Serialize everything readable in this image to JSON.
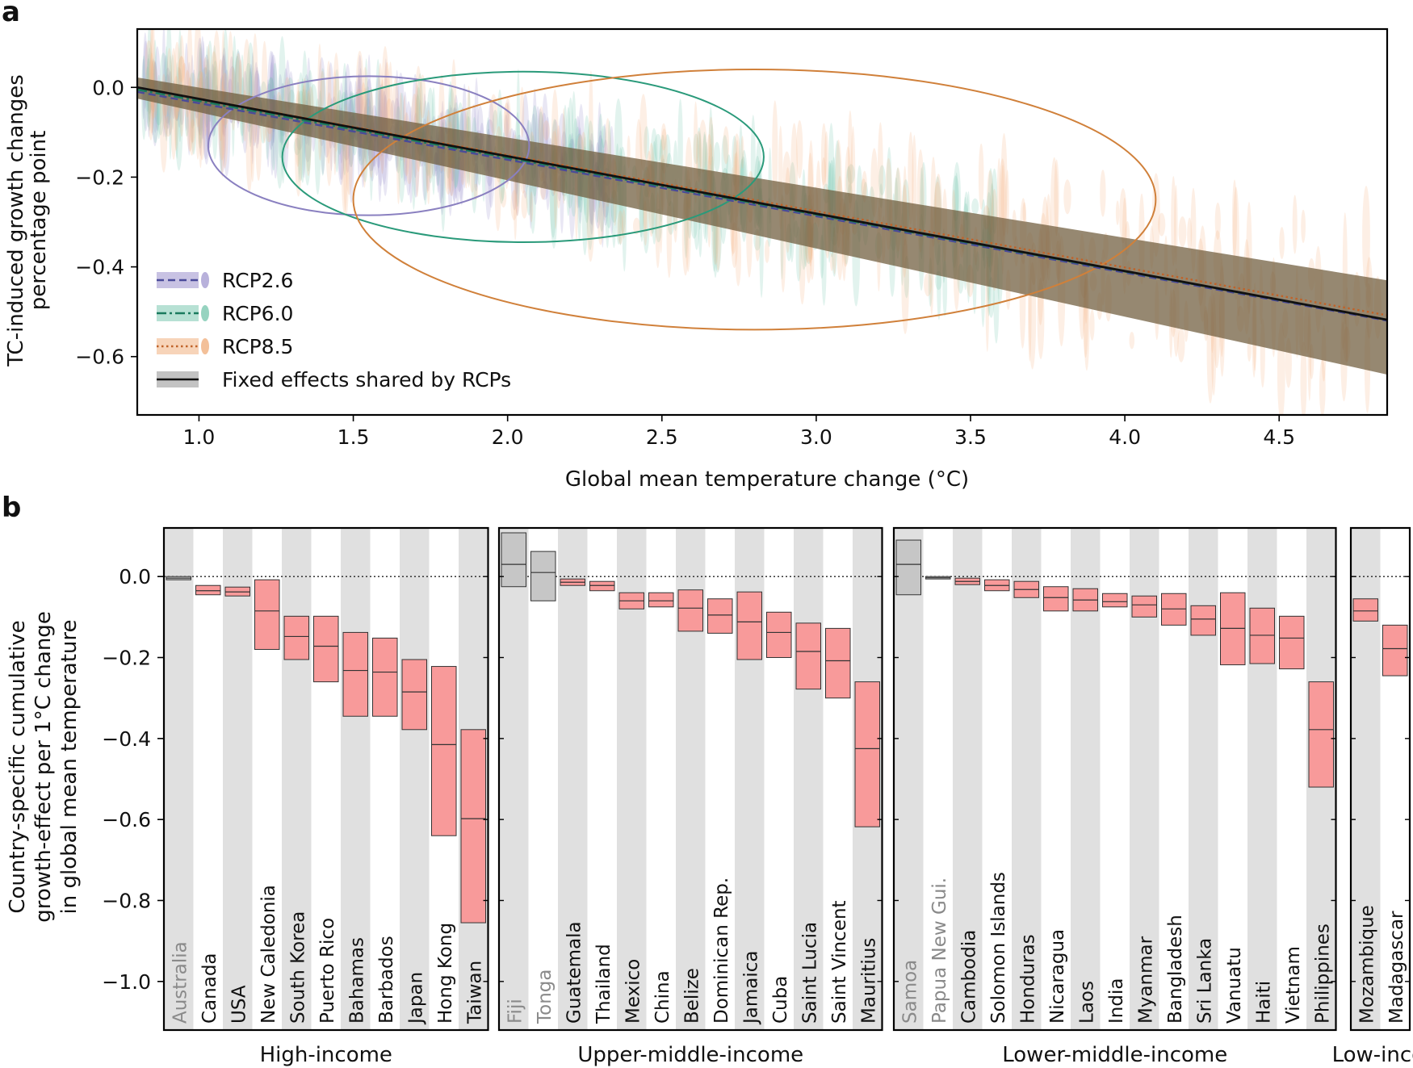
{
  "panel_a_label": "a",
  "panel_b_label": "b",
  "chart_data": [
    {
      "panel": "a",
      "type": "line",
      "xlabel": "Global mean temperature change (°C)",
      "ylabel_lines": [
        "TC-induced growth changes",
        "percentage point"
      ],
      "xlim": [
        0.8,
        4.85
      ],
      "ylim": [
        -0.73,
        0.13
      ],
      "xticks": [
        1.0,
        1.5,
        2.0,
        2.5,
        3.0,
        3.5,
        4.0,
        4.5
      ],
      "xtick_labels": [
        "1.0",
        "1.5",
        "2.0",
        "2.5",
        "3.0",
        "3.5",
        "4.0",
        "4.5"
      ],
      "yticks": [
        0.0,
        -0.2,
        -0.4,
        -0.6
      ],
      "ytick_labels": [
        "0.0",
        "−0.2",
        "−0.4",
        "−0.6"
      ],
      "legend": [
        "RCP2.6",
        "RCP6.0",
        "RCP8.5",
        "Fixed effects shared by RCPs"
      ],
      "series": [
        {
          "name": "RCP2.6",
          "color": "#4a4a9a",
          "style": "dashed",
          "x": [
            0.8,
            4.85
          ],
          "y": [
            -0.01,
            -0.52
          ]
        },
        {
          "name": "RCP6.0",
          "color": "#1a7a5e",
          "style": "dashdot",
          "x": [
            0.8,
            4.85
          ],
          "y": [
            -0.005,
            -0.518
          ]
        },
        {
          "name": "RCP8.5",
          "color": "#c0632a",
          "style": "dotted",
          "x": [
            0.8,
            4.85
          ],
          "y": [
            0.0,
            -0.508
          ]
        },
        {
          "name": "Fixed effects shared by RCPs",
          "color": "#111111",
          "style": "solid",
          "x": [
            0.8,
            4.85
          ],
          "y": [
            0.0,
            -0.518
          ]
        }
      ],
      "ellipses": [
        {
          "name": "RCP2.6",
          "color": "#8a80c0",
          "cx": 1.55,
          "cy": -0.13,
          "rx": 0.52,
          "ry": 0.155
        },
        {
          "name": "RCP6.0",
          "color": "#2a9a7a",
          "cx": 2.05,
          "cy": -0.155,
          "rx": 0.78,
          "ry": 0.19
        },
        {
          "name": "RCP8.5",
          "color": "#d0803a",
          "cx": 2.8,
          "cy": -0.25,
          "rx": 1.3,
          "ry": 0.29
        }
      ]
    },
    {
      "panel": "b",
      "type": "box",
      "ylabel_lines": [
        "Country-specific cumulative",
        "growth-effect per 1°C change",
        "in global mean temperature"
      ],
      "ylim": [
        -1.12,
        0.12
      ],
      "yticks": [
        0.0,
        -0.2,
        -0.4,
        -0.6,
        -0.8,
        -1.0
      ],
      "ytick_labels": [
        "0.0",
        "−0.2",
        "−0.4",
        "−0.6",
        "−0.8",
        "−1.0"
      ],
      "groups": [
        {
          "name": "High-income",
          "countries": [
            {
              "name": "Australia",
              "significant": false,
              "low": -0.008,
              "median": -0.004,
              "high": 0.0
            },
            {
              "name": "Canada",
              "significant": true,
              "low": -0.045,
              "median": -0.035,
              "high": -0.022
            },
            {
              "name": "USA",
              "significant": true,
              "low": -0.048,
              "median": -0.038,
              "high": -0.026
            },
            {
              "name": "New Caledonia",
              "significant": true,
              "low": -0.18,
              "median": -0.085,
              "high": -0.008
            },
            {
              "name": "South Korea",
              "significant": true,
              "low": -0.205,
              "median": -0.148,
              "high": -0.098
            },
            {
              "name": "Puerto Rico",
              "significant": true,
              "low": -0.26,
              "median": -0.172,
              "high": -0.098
            },
            {
              "name": "Bahamas",
              "significant": true,
              "low": -0.345,
              "median": -0.232,
              "high": -0.138
            },
            {
              "name": "Barbados",
              "significant": true,
              "low": -0.345,
              "median": -0.236,
              "high": -0.152
            },
            {
              "name": "Japan",
              "significant": true,
              "low": -0.378,
              "median": -0.285,
              "high": -0.205
            },
            {
              "name": "Hong Kong",
              "significant": true,
              "low": -0.64,
              "median": -0.415,
              "high": -0.222
            },
            {
              "name": "Taiwan",
              "significant": true,
              "low": -0.855,
              "median": -0.598,
              "high": -0.378
            }
          ]
        },
        {
          "name": "Upper-middle-income",
          "countries": [
            {
              "name": "Fiji",
              "significant": false,
              "low": -0.025,
              "median": 0.03,
              "high": 0.108
            },
            {
              "name": "Tonga",
              "significant": false,
              "low": -0.06,
              "median": 0.01,
              "high": 0.062
            },
            {
              "name": "Guatemala",
              "significant": true,
              "low": -0.022,
              "median": -0.014,
              "high": -0.006
            },
            {
              "name": "Thailand",
              "significant": true,
              "low": -0.035,
              "median": -0.022,
              "high": -0.012
            },
            {
              "name": "Mexico",
              "significant": true,
              "low": -0.08,
              "median": -0.06,
              "high": -0.04
            },
            {
              "name": "China",
              "significant": true,
              "low": -0.075,
              "median": -0.06,
              "high": -0.04
            },
            {
              "name": "Belize",
              "significant": true,
              "low": -0.135,
              "median": -0.078,
              "high": -0.033
            },
            {
              "name": "Dominican Rep.",
              "significant": true,
              "low": -0.14,
              "median": -0.095,
              "high": -0.055
            },
            {
              "name": "Jamaica",
              "significant": true,
              "low": -0.205,
              "median": -0.112,
              "high": -0.038
            },
            {
              "name": "Cuba",
              "significant": true,
              "low": -0.2,
              "median": -0.138,
              "high": -0.088
            },
            {
              "name": "Saint Lucia",
              "significant": true,
              "low": -0.278,
              "median": -0.185,
              "high": -0.115
            },
            {
              "name": "Saint Vincent",
              "significant": true,
              "low": -0.3,
              "median": -0.208,
              "high": -0.128
            },
            {
              "name": "Mauritius",
              "significant": true,
              "low": -0.618,
              "median": -0.425,
              "high": -0.26
            }
          ]
        },
        {
          "name": "Lower-middle-income",
          "countries": [
            {
              "name": "Samoa",
              "significant": false,
              "low": -0.045,
              "median": 0.03,
              "high": 0.09
            },
            {
              "name": "Papua New Gui.",
              "significant": false,
              "low": -0.006,
              "median": -0.003,
              "high": 0.0
            },
            {
              "name": "Cambodia",
              "significant": true,
              "low": -0.02,
              "median": -0.012,
              "high": -0.004
            },
            {
              "name": "Solomon Islands",
              "significant": true,
              "low": -0.035,
              "median": -0.022,
              "high": -0.008
            },
            {
              "name": "Honduras",
              "significant": true,
              "low": -0.052,
              "median": -0.032,
              "high": -0.012
            },
            {
              "name": "Nicaragua",
              "significant": true,
              "low": -0.085,
              "median": -0.052,
              "high": -0.025
            },
            {
              "name": "Laos",
              "significant": true,
              "low": -0.085,
              "median": -0.058,
              "high": -0.03
            },
            {
              "name": "India",
              "significant": true,
              "low": -0.075,
              "median": -0.062,
              "high": -0.042
            },
            {
              "name": "Myanmar",
              "significant": true,
              "low": -0.1,
              "median": -0.07,
              "high": -0.048
            },
            {
              "name": "Bangladesh",
              "significant": true,
              "low": -0.12,
              "median": -0.08,
              "high": -0.042
            },
            {
              "name": "Sri Lanka",
              "significant": true,
              "low": -0.145,
              "median": -0.105,
              "high": -0.072
            },
            {
              "name": "Vanuatu",
              "significant": true,
              "low": -0.218,
              "median": -0.128,
              "high": -0.04
            },
            {
              "name": "Haiti",
              "significant": true,
              "low": -0.215,
              "median": -0.145,
              "high": -0.078
            },
            {
              "name": "Vietnam",
              "significant": true,
              "low": -0.228,
              "median": -0.152,
              "high": -0.098
            },
            {
              "name": "Philippines",
              "significant": true,
              "low": -0.52,
              "median": -0.378,
              "high": -0.26
            }
          ]
        },
        {
          "name": "Low-income",
          "countries": [
            {
              "name": "Mozambique",
              "significant": true,
              "low": -0.11,
              "median": -0.085,
              "high": -0.055
            },
            {
              "name": "Madagascar",
              "significant": true,
              "low": -0.245,
              "median": -0.178,
              "high": -0.12
            }
          ]
        }
      ]
    }
  ]
}
